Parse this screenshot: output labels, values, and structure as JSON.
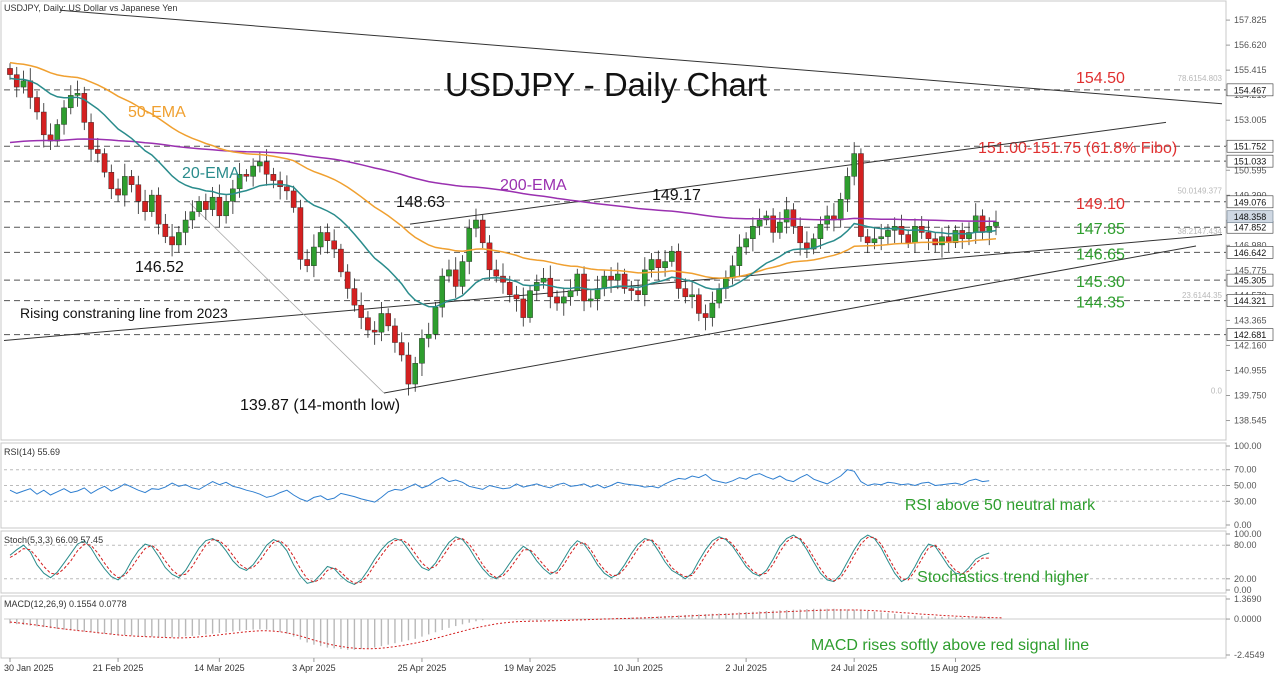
{
  "chart_data": [
    {
      "type": "candlestick",
      "header": "USDJPY, Daily:  US Dollar vs Japanese Yen",
      "title": "USDJPY - Daily Chart",
      "ylim": [
        137.8,
        158.6
      ],
      "y_ticks": [
        "157.825",
        "156.620",
        "155.415",
        "154.210",
        "153.005",
        "151.800",
        "150.595",
        "149.390",
        "148.185",
        "146.980",
        "145.775",
        "144.570",
        "143.365",
        "142.160",
        "140.955",
        "139.750",
        "138.545"
      ],
      "x_labels": [
        "30 Jan 2025",
        "21 Feb 2025",
        "14 Mar 2025",
        "3 Apr 2025",
        "25 Apr 2025",
        "19 May 2025",
        "10 Jun 2025",
        "2 Jul 2025",
        "24 Jul 2025",
        "15 Aug 2025"
      ],
      "x_label_index": [
        0,
        16,
        31,
        45,
        61,
        77,
        93,
        109,
        125,
        140
      ],
      "ohlc_closes": [
        155.2,
        154.6,
        154.9,
        154.1,
        153.4,
        152.3,
        152.0,
        152.8,
        153.6,
        154.2,
        154.3,
        152.9,
        151.6,
        151.4,
        150.5,
        149.7,
        149.4,
        150.3,
        149.9,
        149.1,
        148.6,
        149.4,
        148.0,
        147.4,
        147.0,
        147.6,
        148.2,
        148.6,
        149.1,
        148.7,
        149.3,
        148.4,
        149.1,
        149.7,
        150.4,
        150.3,
        150.8,
        151.0,
        150.4,
        150.1,
        149.8,
        149.6,
        148.8,
        146.3,
        146.0,
        146.9,
        147.6,
        147.2,
        146.8,
        145.7,
        144.9,
        144.1,
        143.5,
        142.9,
        142.8,
        143.7,
        143.1,
        142.3,
        141.7,
        140.3,
        141.3,
        142.5,
        142.7,
        144.0,
        145.5,
        145.8,
        145.0,
        146.2,
        147.8,
        148.2,
        147.1,
        145.8,
        145.5,
        145.2,
        144.6,
        144.4,
        143.5,
        144.8,
        145.2,
        145.4,
        144.5,
        144.2,
        144.5,
        144.8,
        145.6,
        144.3,
        144.4,
        144.9,
        145.5,
        145.3,
        145.6,
        144.9,
        144.8,
        144.6,
        145.8,
        146.3,
        145.9,
        146.2,
        146.7,
        144.9,
        144.5,
        144.6,
        143.7,
        143.5,
        144.2,
        144.9,
        145.4,
        146.0,
        146.9,
        147.3,
        147.9,
        148.2,
        148.4,
        147.6,
        148.1,
        148.7,
        147.9,
        147.1,
        146.8,
        147.3,
        148.0,
        148.4,
        148.2,
        149.2,
        150.3,
        151.4,
        147.4,
        147.1,
        147.3,
        147.4,
        147.7,
        147.9,
        147.5,
        147.1,
        147.9,
        147.6,
        147.3,
        147.0,
        147.4,
        147.1,
        147.7,
        147.3,
        147.6,
        148.4,
        147.6,
        147.9,
        148.1
      ],
      "levels": [
        {
          "label": "154.50",
          "value": 154.467,
          "box": "154.467",
          "color": "#e03030"
        },
        {
          "label": "151.00-151.75 (61.8% Fibo)",
          "value": 151.752,
          "box": "151.752",
          "color": "#e03030"
        },
        {
          "label": "",
          "value": 151.033,
          "box": "151.033",
          "color": "#e03030"
        },
        {
          "label": "149.10",
          "value": 149.076,
          "box": "149.076",
          "color": "#e03030"
        },
        {
          "label": "147.85",
          "value": 147.852,
          "box": "147.852",
          "color": "#2e9e2e"
        },
        {
          "label": "146.65",
          "value": 146.642,
          "box": "146.642",
          "color": "#2e9e2e"
        },
        {
          "label": "145.30",
          "value": 145.305,
          "box": "145.305",
          "color": "#2e9e2e"
        },
        {
          "label": "144.35",
          "value": 144.321,
          "box": "144.321",
          "color": "#2e9e2e"
        },
        {
          "label": "",
          "value": 142.681,
          "box": "142.681",
          "color": "#2e9e2e"
        }
      ],
      "current_price": "148.358",
      "fib_labels": [
        "78.6154.803",
        "50.0149.377",
        "38.2147.434",
        "23.6144.35",
        "0.0"
      ],
      "series": [
        {
          "name": "50-EMA",
          "color": "#f0a030"
        },
        {
          "name": "20-EMA",
          "color": "#2a8c8c"
        },
        {
          "name": "200-EMA",
          "color": "#9a30b0"
        }
      ],
      "annotations": [
        "149.17",
        "148.63",
        "146.52",
        "139.87 (14-month low)",
        "Rising constraning line from 2023"
      ],
      "colors": {
        "bull": "#2e9e2e",
        "bear": "#d42020"
      }
    },
    {
      "type": "line",
      "header": "RSI(14) 55.69",
      "y_ticks": [
        "100.00",
        "70.00",
        "50.00",
        "30.00",
        "0.00"
      ],
      "ylim": [
        0,
        100
      ],
      "note": "RSI above 50 neutral mark",
      "color": "#2f7fd0",
      "values": [
        44,
        40,
        43,
        46,
        39,
        44,
        38,
        42,
        46,
        41,
        43,
        47,
        40,
        45,
        49,
        43,
        47,
        52,
        48,
        44,
        41,
        46,
        45,
        48,
        53,
        49,
        51,
        47,
        45,
        50,
        55,
        51,
        54,
        49,
        47,
        44,
        42,
        39,
        35,
        37,
        41,
        44,
        38,
        33,
        30,
        35,
        37,
        32,
        34,
        40,
        38,
        36,
        33,
        31,
        29,
        35,
        42,
        45,
        44,
        48,
        52,
        47,
        50,
        56,
        60,
        55,
        57,
        54,
        49,
        47,
        45,
        50,
        48,
        46,
        47,
        52,
        48,
        50,
        52,
        49,
        47,
        51,
        53,
        49,
        50,
        52,
        48,
        51,
        47,
        50,
        54,
        52,
        51,
        50,
        48,
        49,
        47,
        52,
        56,
        59,
        58,
        62,
        60,
        64,
        57,
        55,
        53,
        56,
        60,
        58,
        63,
        65,
        61,
        58,
        62,
        57,
        55,
        60,
        64,
        58,
        55,
        52,
        57,
        62,
        70,
        68,
        55,
        50,
        52,
        51,
        54,
        53,
        51,
        52,
        50,
        53,
        54,
        50,
        51,
        52,
        53,
        51,
        56,
        58,
        55,
        56
      ]
    },
    {
      "type": "line",
      "header": "Stoch(5,3,3) 66.09 57.45",
      "y_ticks": [
        "100.00",
        "80.00",
        "20.00",
        "0.00"
      ],
      "ylim": [
        0,
        100
      ],
      "note": "Stochastics trend higher",
      "series": [
        {
          "color": "#2a8c8c",
          "values": [
            62,
            72,
            80,
            68,
            45,
            30,
            22,
            32,
            48,
            65,
            82,
            88,
            75,
            55,
            38,
            24,
            18,
            30,
            52,
            70,
            82,
            78,
            60,
            40,
            28,
            22,
            35,
            55,
            75,
            88,
            92,
            85,
            70,
            52,
            40,
            35,
            45,
            62,
            80,
            90,
            85,
            70,
            45,
            25,
            12,
            15,
            28,
            42,
            38,
            25,
            15,
            10,
            18,
            35,
            55,
            72,
            85,
            92,
            88,
            72,
            55,
            40,
            35,
            48,
            68,
            85,
            95,
            90,
            75,
            55,
            38,
            25,
            20,
            30,
            48,
            65,
            78,
            70,
            52,
            38,
            28,
            35,
            55,
            75,
            88,
            82,
            65,
            45,
            30,
            22,
            28,
            45,
            65,
            82,
            92,
            88,
            70,
            50,
            35,
            28,
            20,
            30,
            52,
            72,
            88,
            95,
            90,
            78,
            60,
            42,
            30,
            25,
            35,
            55,
            78,
            92,
            98,
            90,
            72,
            50,
            30,
            18,
            15,
            28,
            50,
            72,
            90,
            98,
            92,
            75,
            52,
            30,
            15,
            22,
            42,
            65,
            82,
            78,
            60,
            42,
            30,
            28,
            40,
            55,
            62,
            66
          ]
        },
        {
          "color": "#d42020",
          "values": [
            58,
            65,
            74,
            72,
            58,
            42,
            30,
            28,
            38,
            52,
            70,
            82,
            80,
            66,
            48,
            32,
            22,
            26,
            40,
            58,
            74,
            80,
            70,
            52,
            36,
            26,
            28,
            42,
            62,
            80,
            90,
            88,
            78,
            62,
            46,
            38,
            40,
            52,
            70,
            85,
            88,
            78,
            60,
            38,
            20,
            14,
            20,
            35,
            40,
            32,
            20,
            12,
            14,
            26,
            45,
            62,
            78,
            88,
            90,
            82,
            65,
            48,
            38,
            42,
            58,
            76,
            90,
            92,
            82,
            65,
            45,
            30,
            22,
            25,
            38,
            55,
            72,
            72,
            60,
            45,
            32,
            30,
            45,
            65,
            82,
            85,
            72,
            52,
            36,
            26,
            26,
            38,
            55,
            74,
            88,
            90,
            78,
            58,
            40,
            30,
            24,
            26,
            42,
            62,
            80,
            92,
            92,
            82,
            66,
            48,
            34,
            27,
            30,
            46,
            68,
            86,
            95,
            92,
            78,
            58,
            38,
            22,
            16,
            22,
            40,
            62,
            82,
            94,
            94,
            82,
            60,
            38,
            20,
            18,
            34,
            55,
            75,
            80,
            68,
            50,
            35,
            29,
            34,
            48,
            57,
            57
          ]
        }
      ]
    },
    {
      "type": "bar",
      "header": "MACD(12,26,9) 0.1554 0.0778",
      "y_ticks": [
        "1.3690",
        "0.0000",
        "-2.4549"
      ],
      "ylim": [
        -2.4549,
        1.369
      ],
      "note": "MACD rises softly above red signal line",
      "macd_values": [
        -0.3,
        -0.35,
        -0.4,
        -0.45,
        -0.5,
        -0.55,
        -0.62,
        -0.68,
        -0.72,
        -0.76,
        -0.8,
        -0.85,
        -0.9,
        -0.95,
        -1.0,
        -1.05,
        -1.1,
        -1.1,
        -1.12,
        -1.15,
        -1.2,
        -1.2,
        -1.22,
        -1.25,
        -1.25,
        -1.22,
        -1.18,
        -1.15,
        -1.1,
        -1.05,
        -1.0,
        -0.95,
        -0.9,
        -0.85,
        -0.8,
        -0.75,
        -0.72,
        -0.7,
        -0.72,
        -0.78,
        -0.88,
        -1.0,
        -1.2,
        -1.4,
        -1.6,
        -1.75,
        -1.85,
        -1.95,
        -2.0,
        -2.05,
        -2.1,
        -2.1,
        -2.05,
        -2.0,
        -1.95,
        -1.85,
        -1.75,
        -1.65,
        -1.55,
        -1.45,
        -1.35,
        -1.2,
        -1.05,
        -0.9,
        -0.75,
        -0.6,
        -0.48,
        -0.36,
        -0.25,
        -0.15,
        -0.08,
        -0.02,
        0.0,
        0.0,
        -0.02,
        -0.05,
        -0.08,
        -0.1,
        -0.1,
        -0.08,
        -0.06,
        -0.05,
        -0.04,
        -0.02,
        0.0,
        0.02,
        0.02,
        0.03,
        0.05,
        0.06,
        0.08,
        0.08,
        0.1,
        0.1,
        0.12,
        0.15,
        0.18,
        0.2,
        0.22,
        0.25,
        0.28,
        0.3,
        0.32,
        0.34,
        0.36,
        0.38,
        0.4,
        0.42,
        0.45,
        0.48,
        0.5,
        0.52,
        0.55,
        0.58,
        0.6,
        0.62,
        0.64,
        0.66,
        0.68,
        0.7,
        0.7,
        0.7,
        0.7,
        0.68,
        0.66,
        0.64,
        0.6,
        0.55,
        0.5,
        0.45,
        0.4,
        0.35,
        0.3,
        0.26,
        0.22,
        0.2,
        0.18,
        0.16,
        0.14,
        0.13,
        0.12,
        0.12,
        0.13,
        0.14,
        0.15,
        0.155
      ],
      "signal_values": [
        -0.2,
        -0.25,
        -0.3,
        -0.36,
        -0.42,
        -0.48,
        -0.55,
        -0.62,
        -0.68,
        -0.73,
        -0.78,
        -0.83,
        -0.88,
        -0.93,
        -0.98,
        -1.03,
        -1.08,
        -1.12,
        -1.15,
        -1.18,
        -1.2,
        -1.22,
        -1.24,
        -1.26,
        -1.28,
        -1.29,
        -1.28,
        -1.26,
        -1.22,
        -1.18,
        -1.13,
        -1.08,
        -1.02,
        -0.97,
        -0.92,
        -0.87,
        -0.83,
        -0.8,
        -0.8,
        -0.82,
        -0.87,
        -0.94,
        -1.04,
        -1.16,
        -1.3,
        -1.44,
        -1.57,
        -1.69,
        -1.79,
        -1.87,
        -1.94,
        -1.99,
        -2.02,
        -2.03,
        -2.02,
        -1.99,
        -1.94,
        -1.88,
        -1.81,
        -1.73,
        -1.64,
        -1.55,
        -1.44,
        -1.32,
        -1.2,
        -1.07,
        -0.95,
        -0.83,
        -0.71,
        -0.6,
        -0.5,
        -0.41,
        -0.33,
        -0.27,
        -0.22,
        -0.18,
        -0.16,
        -0.15,
        -0.14,
        -0.13,
        -0.12,
        -0.11,
        -0.1,
        -0.08,
        -0.06,
        -0.05,
        -0.03,
        -0.02,
        0.0,
        0.01,
        0.03,
        0.04,
        0.05,
        0.07,
        0.08,
        0.1,
        0.12,
        0.14,
        0.16,
        0.18,
        0.2,
        0.22,
        0.24,
        0.26,
        0.28,
        0.3,
        0.32,
        0.34,
        0.36,
        0.38,
        0.4,
        0.42,
        0.44,
        0.46,
        0.48,
        0.5,
        0.52,
        0.54,
        0.56,
        0.58,
        0.6,
        0.61,
        0.62,
        0.62,
        0.62,
        0.62,
        0.61,
        0.59,
        0.57,
        0.54,
        0.51,
        0.48,
        0.44,
        0.41,
        0.37,
        0.34,
        0.31,
        0.28,
        0.25,
        0.22,
        0.2,
        0.18,
        0.16,
        0.14,
        0.12,
        0.1,
        0.09,
        0.078
      ]
    }
  ]
}
